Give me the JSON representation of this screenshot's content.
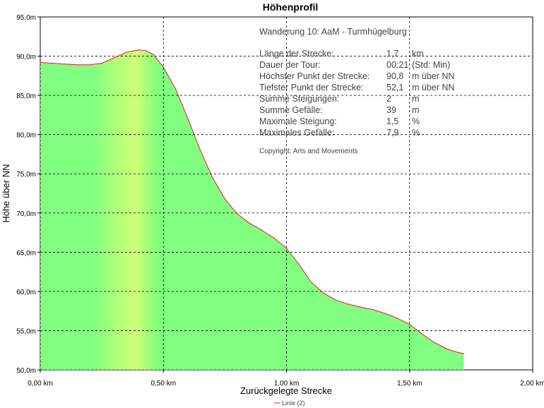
{
  "chart_data": {
    "type": "area",
    "title": "Höhenprofil",
    "xlabel": "Zurückgelegte Strecke",
    "ylabel": "Höhe über NN",
    "xlim": [
      0,
      2.0
    ],
    "ylim": [
      50,
      95
    ],
    "x_ticks": [
      "0,00 km",
      "0,50 km",
      "1,00 km",
      "1,50 km",
      "2,00 km"
    ],
    "y_ticks": [
      "50,0m",
      "55,0m",
      "60,0m",
      "65,0m",
      "70,0m",
      "75,0m",
      "80,0m",
      "85,0m",
      "90,0m",
      "95,0m"
    ],
    "grid": true,
    "legend": {
      "position": "bottom",
      "entries": [
        "Linie (2)"
      ]
    },
    "colors": {
      "fill": "#80ff80",
      "highlight": "#c8ff78",
      "line": "#e02020",
      "grid": "#000000"
    },
    "series": [
      {
        "name": "Linie (2)",
        "x": [
          0,
          0.05,
          0.1,
          0.15,
          0.2,
          0.25,
          0.3,
          0.35,
          0.4,
          0.43,
          0.46,
          0.5,
          0.55,
          0.6,
          0.65,
          0.7,
          0.75,
          0.8,
          0.85,
          0.9,
          0.95,
          1.0,
          1.05,
          1.1,
          1.15,
          1.2,
          1.25,
          1.3,
          1.35,
          1.4,
          1.45,
          1.5,
          1.55,
          1.6,
          1.65,
          1.7,
          1.72
        ],
        "y": [
          89.2,
          89.1,
          89.0,
          88.9,
          88.9,
          89.1,
          89.8,
          90.5,
          90.8,
          90.7,
          90.2,
          88.6,
          85.8,
          82.0,
          78.0,
          74.5,
          71.8,
          69.9,
          68.7,
          67.8,
          66.8,
          65.5,
          63.5,
          61.2,
          59.8,
          58.9,
          58.4,
          58.0,
          57.7,
          57.2,
          56.6,
          55.8,
          54.6,
          53.5,
          52.7,
          52.2,
          52.1
        ]
      }
    ]
  },
  "info": {
    "heading": "Wanderung 10: AaM - Turmhügelburg",
    "rows": [
      {
        "label": "Länge der Strecke:",
        "value": "1,7",
        "unit": "km"
      },
      {
        "label": "Dauer der Tour:",
        "value": "00:21",
        "unit": "(Std: Min)"
      },
      {
        "label": "Höchster Punkt der Strecke:",
        "value": "90,8",
        "unit": "m über NN"
      },
      {
        "label": "Tiefster Punkt der Strecke:",
        "value": "52,1",
        "unit": "m über NN"
      },
      {
        "label": "Summe Steigungen:",
        "value": "2",
        "unit": "m"
      },
      {
        "label": "Summe Gefälle:",
        "value": "39",
        "unit": "m"
      },
      {
        "label": "Maximale Steigung:",
        "value": "1,5",
        "unit": "%"
      },
      {
        "label": "Maximales Gefälle:",
        "value": "7,9",
        "unit": "%"
      }
    ],
    "copyright": "Copyright: Arts and Movements"
  }
}
